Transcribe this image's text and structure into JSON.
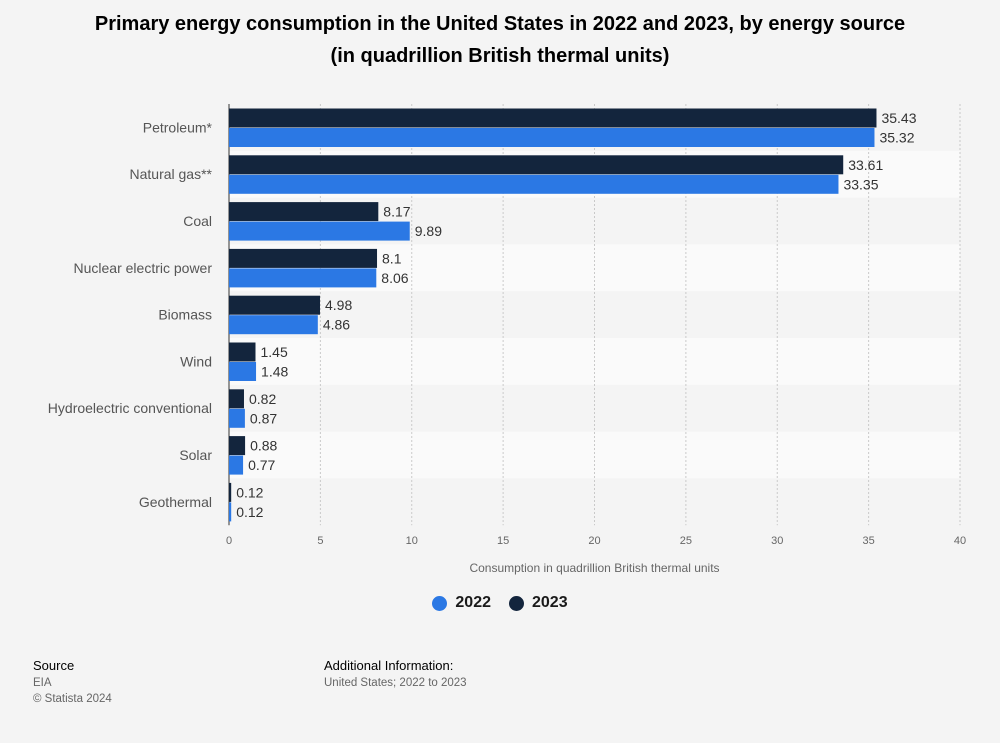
{
  "title_line1": "Primary energy consumption in the United States in 2022 and 2023, by energy source",
  "title_line2": "(in quadrillion British thermal units)",
  "chart_data": {
    "type": "bar",
    "orientation": "horizontal",
    "categories": [
      "Petroleum*",
      "Natural gas**",
      "Coal",
      "Nuclear electric power",
      "Biomass",
      "Wind",
      "Hydroelectric conventional",
      "Solar",
      "Geothermal"
    ],
    "series": [
      {
        "name": "2023",
        "color": "#13253d",
        "values": [
          35.43,
          33.61,
          8.17,
          8.1,
          4.98,
          1.45,
          0.82,
          0.88,
          0.12
        ],
        "labels": [
          "35.43",
          "33.61",
          "8.17",
          "8.1",
          "4.98",
          "1.45",
          "0.82",
          "0.88",
          "0.12"
        ]
      },
      {
        "name": "2022",
        "color": "#2b78e4",
        "values": [
          35.32,
          33.35,
          9.89,
          8.06,
          4.86,
          1.48,
          0.87,
          0.77,
          0.12
        ],
        "labels": [
          "35.32",
          "33.35",
          "9.89",
          "8.06",
          "4.86",
          "1.48",
          "0.87",
          "0.77",
          "0.12"
        ]
      }
    ],
    "xlabel": "Consumption in quadrillion British thermal units",
    "xlim": [
      0,
      40
    ],
    "xticks": [
      "0",
      "5",
      "10",
      "15",
      "20",
      "25",
      "30",
      "35",
      "40"
    ],
    "grid": "vertical dashed",
    "legend_position": "bottom"
  },
  "legend": {
    "item1": "2022",
    "item2": "2023"
  },
  "colors": {
    "series_2022": "#2b78e4",
    "series_2023": "#13253d",
    "background": "#f4f4f4"
  },
  "footer": {
    "source_label": "Source",
    "source_value": "EIA",
    "copyright": "© Statista 2024",
    "additional_label": "Additional Information:",
    "additional_value": "United States; 2022 to 2023"
  }
}
